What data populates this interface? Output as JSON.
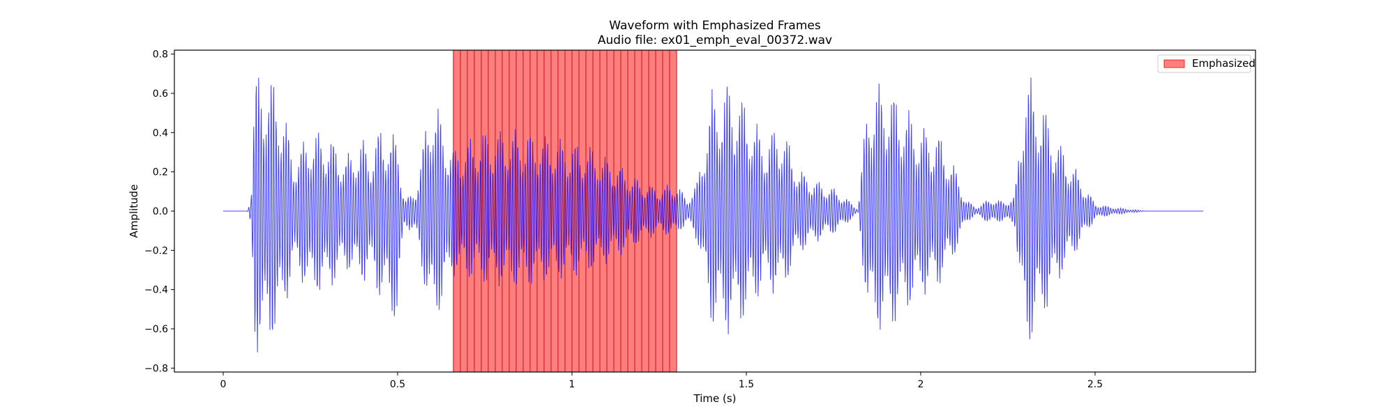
{
  "chart_data": {
    "type": "line",
    "title": "Waveform with Emphasized Frames",
    "subtitle": "Audio file: ex01_emph_eval_00372.wav",
    "xlabel": "Time (s)",
    "ylabel": "Amplitude",
    "xlim": [
      -0.14,
      2.96
    ],
    "ylim": [
      -0.82,
      0.82
    ],
    "xticks": [
      0,
      0.5,
      1,
      1.5,
      2,
      2.5
    ],
    "xtick_labels": [
      "0",
      "0.5",
      "1",
      "1.5",
      "2",
      "2.5"
    ],
    "yticks": [
      -0.8,
      -0.6,
      -0.4,
      -0.2,
      0.0,
      0.2,
      0.4,
      0.6,
      0.8
    ],
    "ytick_labels": [
      "−0.8",
      "−0.6",
      "−0.4",
      "−0.2",
      "0.0",
      "0.2",
      "0.4",
      "0.6",
      "0.8"
    ],
    "grid": false,
    "legend": {
      "position": "top-right",
      "entries": [
        "Emphasized"
      ]
    },
    "emphasized_region": {
      "x_start": 0.66,
      "x_end": 1.3,
      "frames": 32,
      "color": "#ff0000",
      "alpha": 0.5
    },
    "series": [
      {
        "color": "#0000ff",
        "duration": 2.81,
        "envelope_t": [
          0,
          0.07,
          0.08,
          0.09,
          0.12,
          0.17,
          0.2,
          0.22,
          0.25,
          0.3,
          0.35,
          0.4,
          0.42,
          0.45,
          0.5,
          0.52,
          0.55,
          0.6,
          0.63,
          0.66,
          0.75,
          0.85,
          0.95,
          1.05,
          1.15,
          1.2,
          1.25,
          1.3,
          1.33,
          1.36,
          1.4,
          1.45,
          1.5,
          1.55,
          1.6,
          1.65,
          1.7,
          1.75,
          1.78,
          1.82,
          1.85,
          1.9,
          1.95,
          2.0,
          2.05,
          2.1,
          2.13,
          2.16,
          2.2,
          2.24,
          2.27,
          2.3,
          2.35,
          2.4,
          2.45,
          2.5,
          2.55,
          2.6,
          2.65,
          2.81
        ],
        "envelope_pos": [
          0.0,
          0.0,
          0.12,
          0.7,
          0.74,
          0.58,
          0.28,
          0.33,
          0.42,
          0.4,
          0.28,
          0.38,
          0.3,
          0.44,
          0.38,
          0.06,
          0.1,
          0.64,
          0.45,
          0.32,
          0.42,
          0.42,
          0.38,
          0.34,
          0.22,
          0.15,
          0.12,
          0.15,
          0.06,
          0.16,
          0.62,
          0.67,
          0.56,
          0.38,
          0.46,
          0.22,
          0.16,
          0.12,
          0.08,
          0.01,
          0.64,
          0.67,
          0.56,
          0.44,
          0.41,
          0.22,
          0.06,
          0.02,
          0.07,
          0.05,
          0.08,
          0.74,
          0.56,
          0.35,
          0.2,
          0.04,
          0.02,
          0.01,
          0.0,
          0.0
        ],
        "envelope_neg": [
          0.0,
          0.0,
          -0.12,
          -0.72,
          -0.74,
          -0.58,
          -0.3,
          -0.35,
          -0.44,
          -0.42,
          -0.3,
          -0.38,
          -0.32,
          -0.46,
          -0.6,
          -0.08,
          -0.12,
          -0.62,
          -0.48,
          -0.33,
          -0.38,
          -0.4,
          -0.36,
          -0.32,
          -0.22,
          -0.16,
          -0.12,
          -0.13,
          -0.06,
          -0.16,
          -0.6,
          -0.64,
          -0.56,
          -0.4,
          -0.44,
          -0.22,
          -0.16,
          -0.12,
          -0.08,
          -0.01,
          -0.6,
          -0.64,
          -0.54,
          -0.44,
          -0.4,
          -0.22,
          -0.06,
          -0.02,
          -0.07,
          -0.05,
          -0.08,
          -0.74,
          -0.56,
          -0.35,
          -0.2,
          -0.04,
          -0.02,
          -0.01,
          0.0,
          0.0
        ]
      }
    ]
  }
}
